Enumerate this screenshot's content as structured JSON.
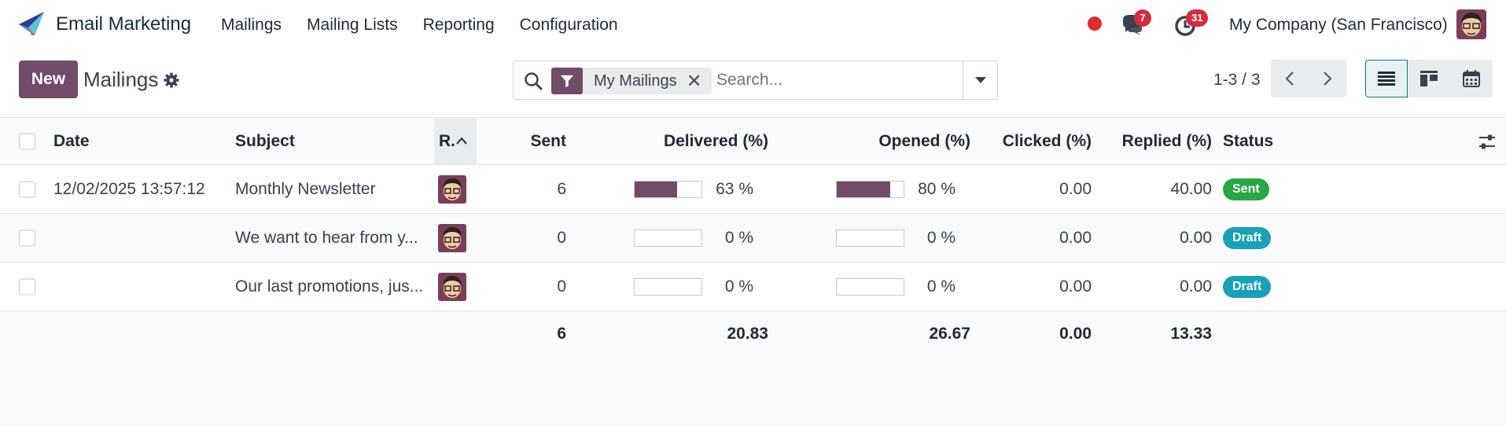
{
  "app": {
    "name": "Email Marketing"
  },
  "menu": [
    {
      "label": "Mailings"
    },
    {
      "label": "Mailing Lists"
    },
    {
      "label": "Reporting"
    },
    {
      "label": "Configuration"
    }
  ],
  "systray": {
    "messages_badge": "7",
    "activities_badge": "31",
    "company": "My Company (San Francisco)"
  },
  "control": {
    "new_label": "New",
    "title": "Mailings",
    "facet_label": "My Mailings",
    "search_placeholder": "Search...",
    "pager": "1-3 / 3"
  },
  "columns": {
    "date": "Date",
    "subject": "Subject",
    "responsible": "R.",
    "sent": "Sent",
    "delivered": "Delivered (%)",
    "opened": "Opened (%)",
    "clicked": "Clicked (%)",
    "replied": "Replied (%)",
    "status": "Status"
  },
  "rows": [
    {
      "date": "12/02/2025 13:57:12",
      "subject": "Monthly Newsletter",
      "sent": "6",
      "delivered": "63 %",
      "delivered_pct": 63,
      "opened": "80 %",
      "opened_pct": 80,
      "clicked": "0.00",
      "replied": "40.00",
      "status": "Sent",
      "status_kind": "sent"
    },
    {
      "date": "",
      "subject": "We want to hear from y...",
      "sent": "0",
      "delivered": "0 %",
      "delivered_pct": 0,
      "opened": "0 %",
      "opened_pct": 0,
      "clicked": "0.00",
      "replied": "0.00",
      "status": "Draft",
      "status_kind": "draft"
    },
    {
      "date": "",
      "subject": "Our last promotions, jus...",
      "sent": "0",
      "delivered": "0 %",
      "delivered_pct": 0,
      "opened": "0 %",
      "opened_pct": 0,
      "clicked": "0.00",
      "replied": "0.00",
      "status": "Draft",
      "status_kind": "draft"
    }
  ],
  "totals": {
    "sent": "6",
    "delivered": "20.83",
    "opened": "26.67",
    "clicked": "0.00",
    "replied": "13.33"
  },
  "colors": {
    "brand": "#714b67",
    "sent": "#28a745",
    "draft": "#17a2b8",
    "badge": "#d22d3f"
  }
}
